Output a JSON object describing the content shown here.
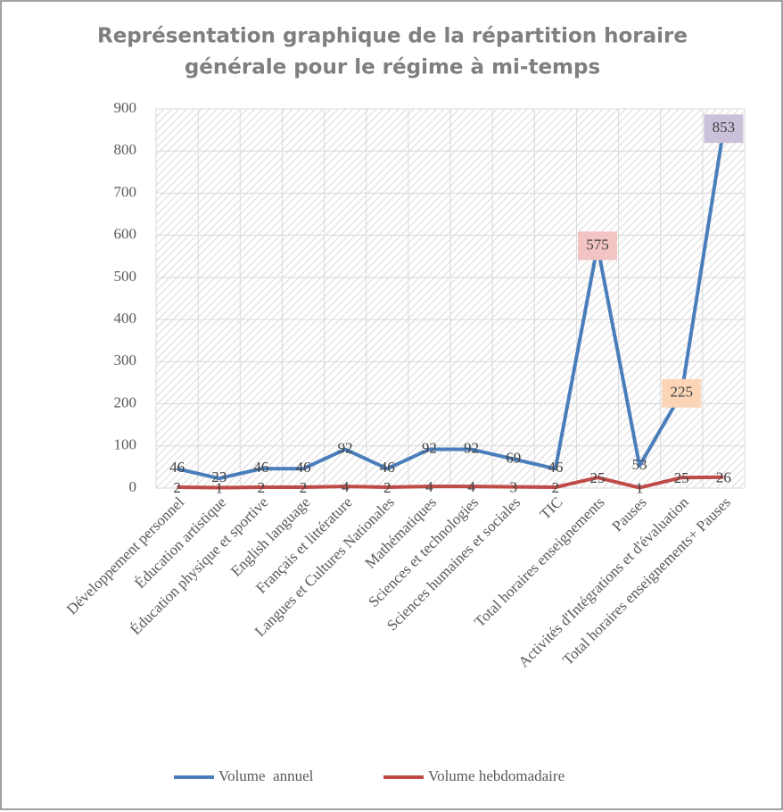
{
  "chart_data": {
    "type": "line",
    "title": [
      "Représentation graphique de la répartition horaire",
      "générale pour le régime à mi-temps"
    ],
    "categories": [
      "Développement personnel",
      "Éducation artistique",
      "Éducation physique et sportive",
      "English language",
      "Français et littérature",
      "Langues et Cultures Nationales",
      "Mathématiques",
      "Sciences et technologies",
      "Sciences humaines et sociales",
      "TIC",
      "Total horaires enseignements",
      "Pauses",
      "Activités d'Intégrations et d'évaluation",
      "Total horaires enseignements+ Pauses"
    ],
    "series": [
      {
        "name": "Volume  annuel",
        "color": "#4a7ebb",
        "values": [
          46,
          23,
          46,
          46,
          92,
          46,
          92,
          92,
          69,
          46,
          575,
          53,
          225,
          853
        ],
        "label_backgrounds": [
          null,
          null,
          null,
          null,
          null,
          null,
          null,
          null,
          null,
          null,
          "#f2c4c4",
          null,
          "#fbd5b5",
          "#ccc1da"
        ]
      },
      {
        "name": "Volume hebdomadaire",
        "color": "#be4b48",
        "values": [
          2,
          1,
          2,
          2,
          4,
          2,
          4,
          4,
          3,
          2,
          25,
          1,
          25,
          26
        ]
      }
    ],
    "ylim": [
      0,
      900
    ],
    "yticks": [
      0,
      100,
      200,
      300,
      400,
      500,
      600,
      700,
      800,
      900
    ],
    "grid": true
  }
}
